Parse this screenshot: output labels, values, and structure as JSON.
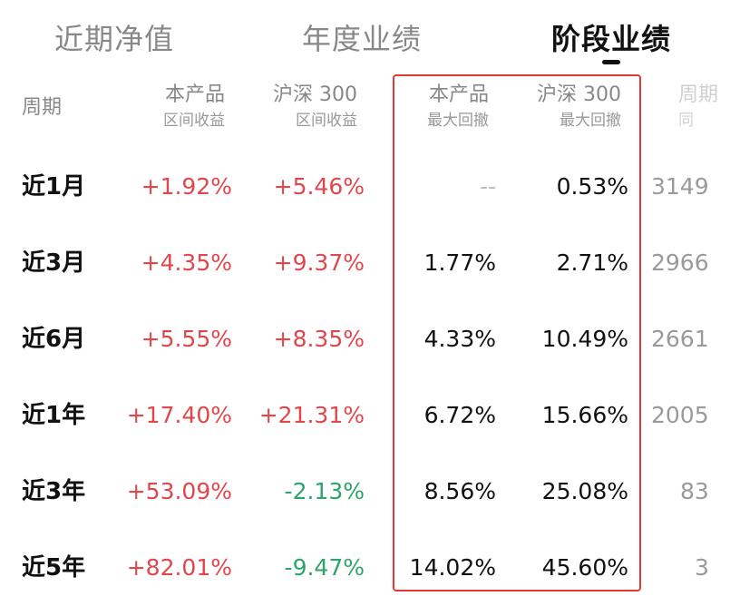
{
  "tabs": [
    {
      "label": "近期净值",
      "active": false
    },
    {
      "label": "年度业绩",
      "active": false
    },
    {
      "label": "阶段业绩",
      "active": true
    }
  ],
  "headers": {
    "period": "周期",
    "product_return": {
      "line1": "本产品",
      "line2": "区间收益"
    },
    "index_return": {
      "line1": "沪深 300",
      "line2": "区间收益"
    },
    "product_drawdown": {
      "line1": "本产品",
      "line2": "最大回撤"
    },
    "index_drawdown": {
      "line1": "沪深 300",
      "line2": "最大回撤"
    },
    "rank_partial": {
      "line1": "周期",
      "line2": "同"
    }
  },
  "rows": [
    {
      "period": "近1月",
      "product_return": "+1.92%",
      "index_return": "+5.46%",
      "product_drawdown": "--",
      "index_drawdown": "0.53%",
      "rank_partial": "3149"
    },
    {
      "period": "近3月",
      "product_return": "+4.35%",
      "index_return": "+9.37%",
      "product_drawdown": "1.77%",
      "index_drawdown": "2.71%",
      "rank_partial": "2966"
    },
    {
      "period": "近6月",
      "product_return": "+5.55%",
      "index_return": "+8.35%",
      "product_drawdown": "4.33%",
      "index_drawdown": "10.49%",
      "rank_partial": "2661"
    },
    {
      "period": "近1年",
      "product_return": "+17.40%",
      "index_return": "+21.31%",
      "product_drawdown": "6.72%",
      "index_drawdown": "15.66%",
      "rank_partial": "2005"
    },
    {
      "period": "近3年",
      "product_return": "+53.09%",
      "index_return": "-2.13%",
      "product_drawdown": "8.56%",
      "index_drawdown": "25.08%",
      "rank_partial": "83"
    },
    {
      "period": "近5年",
      "product_return": "+82.01%",
      "index_return": "-9.47%",
      "product_drawdown": "14.02%",
      "index_drawdown": "45.60%",
      "rank_partial": "3"
    }
  ],
  "colors": {
    "positive": "#e0474c",
    "negative": "#2ea46d",
    "highlight": "#e53935"
  }
}
